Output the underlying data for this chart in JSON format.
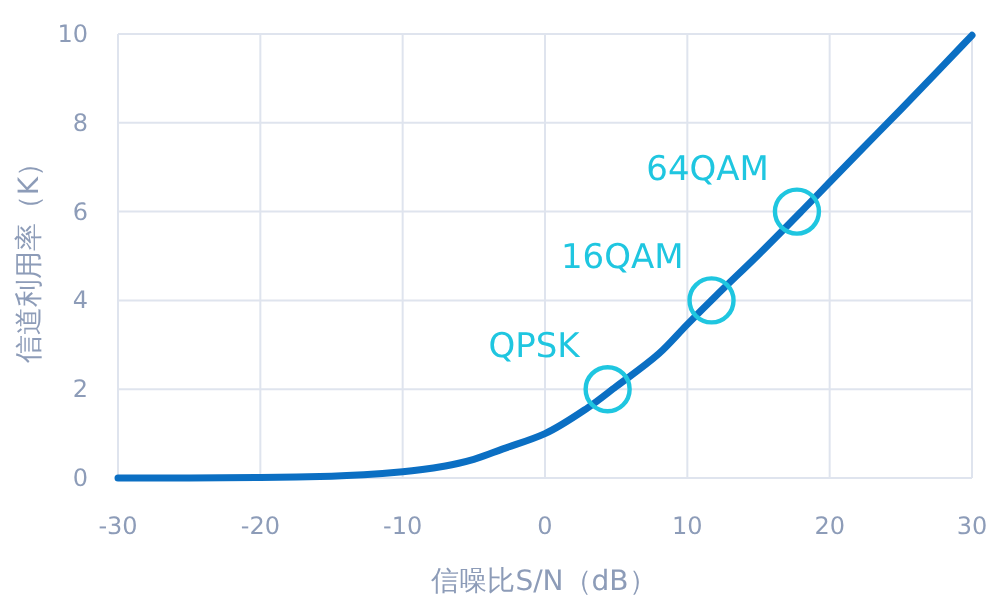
{
  "chart_data": {
    "type": "line",
    "xlabel": "信噪比S/N（dB）",
    "ylabel": "信道利用率（K）",
    "xlim": [
      -30,
      30
    ],
    "xticks": [
      -30,
      -20,
      -10,
      0,
      10,
      20,
      30
    ],
    "ylim": [
      0,
      10
    ],
    "yticks": [
      0,
      2,
      4,
      6,
      8,
      10
    ],
    "grid": true,
    "series": [
      {
        "color": "#0b6fc3",
        "line_style": "solid",
        "marker": "none",
        "x": [
          -30,
          -25,
          -20,
          -15,
          -10,
          -7,
          -5,
          -3,
          0,
          3,
          5,
          8,
          10,
          12,
          15,
          18,
          20,
          22,
          25,
          28,
          30
        ],
        "values": [
          0,
          0,
          0.01,
          0.04,
          0.14,
          0.27,
          0.42,
          0.65,
          1.0,
          1.58,
          2.06,
          2.8,
          3.46,
          4.1,
          5.03,
          6.0,
          6.66,
          7.32,
          8.3,
          9.3,
          9.97
        ]
      },
      {
        "type": "scatter",
        "color": "#1fc6e0",
        "marker": "circle",
        "x": [
          4.4,
          11.7,
          17.7
        ],
        "values": [
          2,
          4,
          6
        ]
      }
    ],
    "annotations": [
      {
        "text": "QPSK",
        "x": 4.4,
        "y": 2
      },
      {
        "text": "16QAM",
        "x": 11.7,
        "y": 4
      },
      {
        "text": "64QAM",
        "x": 17.7,
        "y": 6
      }
    ]
  }
}
